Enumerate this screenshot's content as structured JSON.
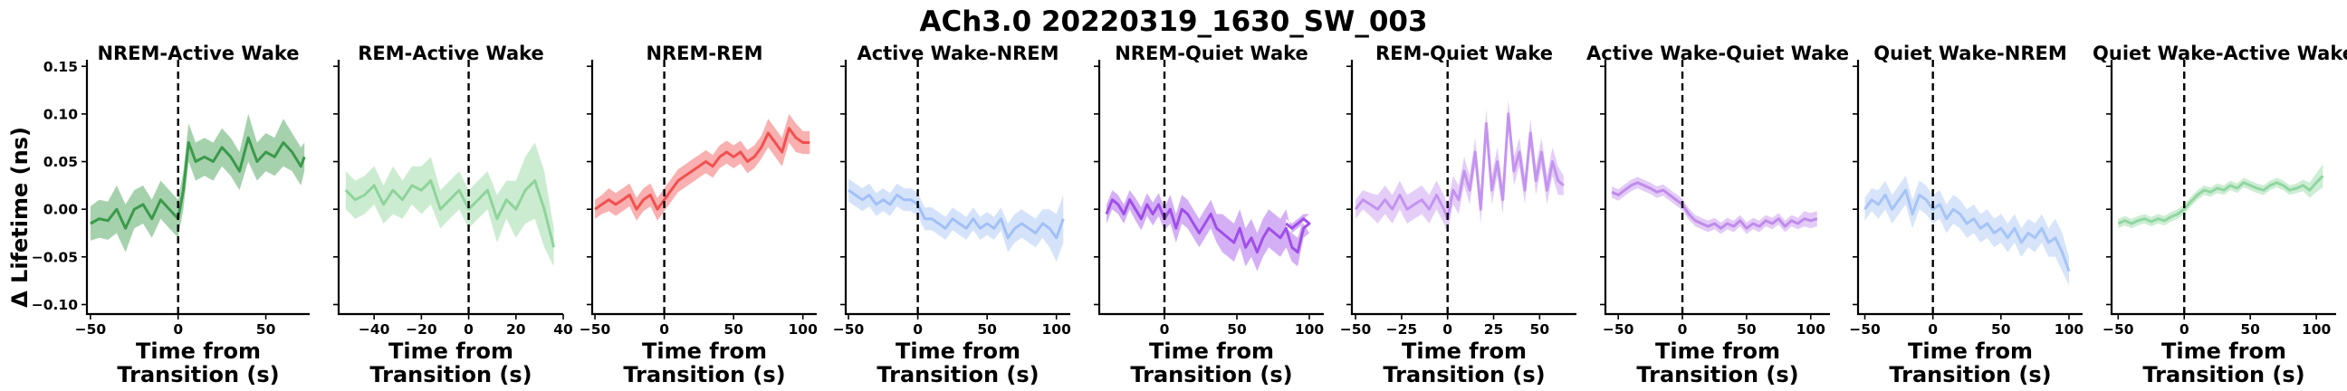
{
  "figure_title": "ACh3.0 20220319_1630_SW_003",
  "chart_data": {
    "type": "line",
    "ylabel": "Δ Lifetime (ns)",
    "xlabel": "Time from\nTransition (s)",
    "ylim": [
      -0.11,
      0.155
    ],
    "yticks": [
      -0.1,
      -0.05,
      0.0,
      0.05,
      0.1,
      0.15
    ],
    "ytick_labels": [
      "−0.10",
      "−0.05",
      "0.00",
      "0.05",
      "0.10",
      "0.15"
    ],
    "shared_y": true,
    "vertical_line": {
      "x": 0,
      "style": "dashed"
    },
    "panels": [
      {
        "title": "NREM-Active Wake",
        "color": "#3a9a4a",
        "xlim": [
          -52,
          75
        ],
        "xticks": [
          -50,
          0,
          50
        ],
        "xtick_labels": [
          "−50",
          "0",
          "50"
        ],
        "x": [
          -50,
          -45,
          -40,
          -35,
          -30,
          -25,
          -20,
          -15,
          -10,
          -5,
          0,
          3,
          6,
          10,
          15,
          20,
          25,
          30,
          35,
          40,
          45,
          50,
          55,
          60,
          65,
          70,
          72
        ],
        "y": [
          -0.015,
          -0.01,
          -0.012,
          0.0,
          -0.02,
          0.0,
          0.005,
          -0.01,
          0.01,
          0.0,
          -0.01,
          0.02,
          0.07,
          0.05,
          0.055,
          0.05,
          0.065,
          0.055,
          0.04,
          0.075,
          0.05,
          0.06,
          0.055,
          0.07,
          0.06,
          0.045,
          0.055
        ],
        "band": [
          0.018,
          0.02,
          0.02,
          0.025,
          0.025,
          0.02,
          0.02,
          0.02,
          0.02,
          0.02,
          0.02,
          0.02,
          0.02,
          0.02,
          0.02,
          0.02,
          0.02,
          0.02,
          0.02,
          0.025,
          0.02,
          0.02,
          0.02,
          0.025,
          0.02,
          0.02,
          0.015
        ]
      },
      {
        "title": "REM-Active Wake",
        "color": "#8ed49a",
        "xlim": [
          -55,
          40
        ],
        "xticks": [
          -40,
          -20,
          0,
          20,
          40
        ],
        "xtick_labels": [
          "−40",
          "−20",
          "0",
          "20",
          "40"
        ],
        "x": [
          -52,
          -48,
          -44,
          -40,
          -36,
          -32,
          -28,
          -24,
          -20,
          -16,
          -12,
          -8,
          -4,
          0,
          4,
          8,
          12,
          16,
          20,
          24,
          28,
          32,
          36
        ],
        "y": [
          0.02,
          0.01,
          0.015,
          0.025,
          0.005,
          0.02,
          0.01,
          0.025,
          0.02,
          0.03,
          0.0,
          0.01,
          0.02,
          0.0,
          0.01,
          0.02,
          -0.01,
          0.01,
          0.0,
          0.02,
          0.03,
          0.0,
          -0.04
        ],
        "band": [
          0.02,
          0.02,
          0.02,
          0.02,
          0.02,
          0.025,
          0.02,
          0.02,
          0.025,
          0.025,
          0.02,
          0.02,
          0.02,
          0.02,
          0.02,
          0.02,
          0.025,
          0.02,
          0.03,
          0.035,
          0.04,
          0.04,
          0.02
        ]
      },
      {
        "title": "NREM-REM",
        "color": "#f25050",
        "xlim": [
          -52,
          110
        ],
        "xticks": [
          -50,
          0,
          50,
          100
        ],
        "xtick_labels": [
          "−50",
          "0",
          "50",
          "100"
        ],
        "x": [
          -50,
          -45,
          -40,
          -35,
          -30,
          -25,
          -20,
          -15,
          -10,
          -5,
          0,
          5,
          10,
          15,
          20,
          25,
          30,
          35,
          40,
          45,
          50,
          55,
          60,
          65,
          70,
          75,
          80,
          85,
          90,
          95,
          100,
          105
        ],
        "y": [
          0.0,
          0.005,
          0.01,
          0.005,
          0.01,
          0.015,
          0.0,
          0.01,
          0.015,
          0.0,
          0.01,
          0.02,
          0.03,
          0.035,
          0.04,
          0.045,
          0.05,
          0.045,
          0.055,
          0.06,
          0.055,
          0.06,
          0.05,
          0.055,
          0.065,
          0.08,
          0.07,
          0.06,
          0.085,
          0.075,
          0.07,
          0.07
        ],
        "band": [
          0.01,
          0.01,
          0.012,
          0.012,
          0.012,
          0.012,
          0.012,
          0.012,
          0.012,
          0.012,
          0.012,
          0.012,
          0.012,
          0.012,
          0.012,
          0.012,
          0.012,
          0.012,
          0.012,
          0.012,
          0.012,
          0.012,
          0.012,
          0.012,
          0.012,
          0.015,
          0.015,
          0.015,
          0.015,
          0.015,
          0.012,
          0.012
        ]
      },
      {
        "title": "Active Wake-NREM",
        "color": "#a2c0f5",
        "xlim": [
          -52,
          110
        ],
        "xticks": [
          -50,
          0,
          50,
          100
        ],
        "xtick_labels": [
          "−50",
          "0",
          "50",
          "100"
        ],
        "x": [
          -50,
          -45,
          -40,
          -35,
          -30,
          -25,
          -20,
          -15,
          -10,
          -5,
          0,
          5,
          10,
          15,
          20,
          25,
          30,
          35,
          40,
          45,
          50,
          55,
          60,
          65,
          70,
          75,
          80,
          85,
          90,
          95,
          100,
          105
        ],
        "y": [
          0.02,
          0.015,
          0.01,
          0.015,
          0.005,
          0.01,
          0.005,
          0.015,
          0.01,
          0.01,
          0.005,
          -0.01,
          -0.01,
          -0.015,
          -0.02,
          -0.01,
          -0.015,
          -0.02,
          -0.01,
          -0.02,
          -0.015,
          -0.02,
          -0.01,
          -0.03,
          -0.02,
          -0.015,
          -0.02,
          -0.025,
          -0.015,
          -0.02,
          -0.03,
          -0.01
        ],
        "band": [
          0.012,
          0.012,
          0.012,
          0.012,
          0.012,
          0.012,
          0.012,
          0.012,
          0.012,
          0.012,
          0.012,
          0.012,
          0.012,
          0.012,
          0.012,
          0.012,
          0.012,
          0.012,
          0.012,
          0.012,
          0.012,
          0.012,
          0.012,
          0.015,
          0.015,
          0.015,
          0.015,
          0.015,
          0.015,
          0.02,
          0.025,
          0.025
        ]
      },
      {
        "title": "NREM-Quiet Wake",
        "color": "#a04ee8",
        "xlim": [
          -45,
          110
        ],
        "xticks": [
          0,
          50,
          100
        ],
        "xtick_labels": [
          "0",
          "50",
          "100"
        ],
        "x": [
          -40,
          -36,
          -32,
          -28,
          -24,
          -20,
          -16,
          -12,
          -8,
          -4,
          0,
          4,
          8,
          12,
          16,
          20,
          24,
          28,
          32,
          36,
          40,
          44,
          48,
          52,
          56,
          60,
          64,
          68,
          72,
          76,
          80,
          84,
          88,
          92,
          96,
          100,
          96,
          88,
          84
        ],
        "y": [
          -0.005,
          0.01,
          0.005,
          -0.005,
          0.01,
          0.0,
          -0.01,
          0.005,
          -0.005,
          0.005,
          -0.01,
          0.0,
          -0.02,
          0.0,
          -0.005,
          -0.015,
          -0.025,
          -0.015,
          -0.005,
          -0.02,
          -0.025,
          -0.03,
          -0.035,
          -0.02,
          -0.04,
          -0.03,
          -0.045,
          -0.03,
          -0.02,
          -0.025,
          -0.03,
          -0.02,
          -0.04,
          -0.045,
          -0.02,
          -0.015,
          -0.01,
          -0.02,
          -0.015
        ],
        "band": [
          0.01,
          0.01,
          0.01,
          0.01,
          0.01,
          0.012,
          0.012,
          0.012,
          0.012,
          0.012,
          0.012,
          0.015,
          0.015,
          0.015,
          0.015,
          0.015,
          0.015,
          0.015,
          0.015,
          0.015,
          0.02,
          0.02,
          0.02,
          0.02,
          0.02,
          0.02,
          0.02,
          0.02,
          0.02,
          0.02,
          0.02,
          0.02,
          0.015,
          0.015,
          0.01,
          0.01,
          0.005,
          0.005,
          0.005
        ]
      },
      {
        "title": "REM-Quiet Wake",
        "color": "#c493f0",
        "xlim": [
          -52,
          70
        ],
        "xticks": [
          -50,
          -25,
          0,
          25,
          50
        ],
        "xtick_labels": [
          "−50",
          "−25",
          "0",
          "25",
          "50"
        ],
        "x": [
          -50,
          -46,
          -42,
          -38,
          -34,
          -30,
          -26,
          -22,
          -18,
          -14,
          -10,
          -6,
          -2,
          0,
          3,
          6,
          9,
          12,
          15,
          18,
          21,
          24,
          27,
          30,
          33,
          36,
          39,
          42,
          45,
          48,
          51,
          54,
          57,
          60,
          63
        ],
        "y": [
          0.0,
          0.01,
          0.005,
          0.0,
          0.01,
          0.0,
          0.015,
          0.0,
          0.005,
          0.01,
          0.0,
          0.015,
          0.0,
          -0.01,
          0.02,
          0.01,
          0.04,
          0.02,
          0.06,
          0.0,
          0.09,
          0.02,
          0.05,
          0.01,
          0.1,
          0.04,
          0.06,
          0.02,
          0.08,
          0.03,
          0.06,
          0.02,
          0.05,
          0.03,
          0.025
        ],
        "band": [
          0.01,
          0.01,
          0.012,
          0.015,
          0.015,
          0.015,
          0.015,
          0.015,
          0.015,
          0.015,
          0.015,
          0.015,
          0.015,
          0.015,
          0.015,
          0.015,
          0.015,
          0.015,
          0.015,
          0.015,
          0.015,
          0.015,
          0.015,
          0.015,
          0.015,
          0.015,
          0.015,
          0.015,
          0.015,
          0.015,
          0.015,
          0.015,
          0.015,
          0.015,
          0.01
        ]
      },
      {
        "title": "Active Wake-Quiet Wake",
        "color": "#c08bec",
        "xlim": [
          -60,
          115
        ],
        "xticks": [
          -50,
          0,
          50,
          100
        ],
        "xtick_labels": [
          "−50",
          "0",
          "50",
          "100"
        ],
        "x": [
          -55,
          -50,
          -45,
          -40,
          -35,
          -30,
          -25,
          -20,
          -15,
          -10,
          -5,
          0,
          5,
          10,
          15,
          20,
          25,
          30,
          35,
          40,
          45,
          50,
          55,
          60,
          65,
          70,
          75,
          80,
          85,
          90,
          95,
          100,
          105
        ],
        "y": [
          0.018,
          0.015,
          0.02,
          0.025,
          0.028,
          0.025,
          0.022,
          0.018,
          0.02,
          0.015,
          0.01,
          0.005,
          -0.005,
          -0.012,
          -0.015,
          -0.018,
          -0.015,
          -0.02,
          -0.015,
          -0.018,
          -0.012,
          -0.02,
          -0.015,
          -0.018,
          -0.012,
          -0.015,
          -0.01,
          -0.018,
          -0.012,
          -0.015,
          -0.01,
          -0.012,
          -0.01
        ],
        "band": [
          0.006,
          0.006,
          0.006,
          0.006,
          0.006,
          0.006,
          0.006,
          0.006,
          0.006,
          0.006,
          0.006,
          0.006,
          0.006,
          0.006,
          0.006,
          0.006,
          0.006,
          0.006,
          0.006,
          0.006,
          0.006,
          0.006,
          0.006,
          0.006,
          0.006,
          0.006,
          0.006,
          0.006,
          0.006,
          0.006,
          0.008,
          0.008,
          0.008
        ]
      },
      {
        "title": "Quiet Wake-NREM",
        "color": "#a6c4f5",
        "xlim": [
          -55,
          110
        ],
        "xticks": [
          -50,
          0,
          50,
          100
        ],
        "xtick_labels": [
          "−50",
          "0",
          "50",
          "100"
        ],
        "x": [
          -50,
          -45,
          -40,
          -35,
          -30,
          -25,
          -20,
          -15,
          -10,
          -5,
          0,
          5,
          10,
          15,
          20,
          25,
          30,
          35,
          40,
          45,
          50,
          55,
          60,
          65,
          70,
          75,
          80,
          85,
          90,
          95,
          100
        ],
        "y": [
          0.0,
          0.01,
          0.005,
          0.015,
          0.0,
          0.01,
          0.02,
          -0.005,
          0.015,
          0.01,
          0.0,
          0.005,
          -0.01,
          0.0,
          -0.005,
          -0.015,
          -0.01,
          -0.02,
          -0.015,
          -0.025,
          -0.02,
          -0.03,
          -0.02,
          -0.035,
          -0.025,
          -0.03,
          -0.02,
          -0.035,
          -0.03,
          -0.045,
          -0.065
        ],
        "band": [
          0.012,
          0.012,
          0.015,
          0.015,
          0.015,
          0.015,
          0.015,
          0.015,
          0.015,
          0.015,
          0.015,
          0.015,
          0.015,
          0.015,
          0.015,
          0.015,
          0.015,
          0.015,
          0.015,
          0.015,
          0.015,
          0.015,
          0.015,
          0.015,
          0.015,
          0.015,
          0.015,
          0.015,
          0.02,
          0.02,
          0.015
        ]
      },
      {
        "title": "Quiet Wake-Active Wake",
        "color": "#90d6a0",
        "xlim": [
          -55,
          115
        ],
        "xticks": [
          -50,
          0,
          50,
          100
        ],
        "xtick_labels": [
          "−50",
          "0",
          "50",
          "100"
        ],
        "x": [
          -50,
          -45,
          -40,
          -35,
          -30,
          -25,
          -20,
          -15,
          -10,
          -5,
          0,
          5,
          10,
          15,
          20,
          25,
          30,
          35,
          40,
          45,
          50,
          55,
          60,
          65,
          70,
          75,
          80,
          85,
          90,
          95,
          100,
          105
        ],
        "y": [
          -0.015,
          -0.012,
          -0.015,
          -0.012,
          -0.01,
          -0.013,
          -0.01,
          -0.012,
          -0.008,
          -0.005,
          0.0,
          0.008,
          0.015,
          0.02,
          0.018,
          0.022,
          0.02,
          0.025,
          0.022,
          0.028,
          0.025,
          0.022,
          0.02,
          0.025,
          0.028,
          0.025,
          0.02,
          0.022,
          0.025,
          0.02,
          0.028,
          0.035
        ],
        "band": [
          0.005,
          0.005,
          0.005,
          0.005,
          0.005,
          0.005,
          0.005,
          0.005,
          0.005,
          0.005,
          0.005,
          0.005,
          0.005,
          0.005,
          0.005,
          0.005,
          0.005,
          0.005,
          0.005,
          0.005,
          0.005,
          0.005,
          0.005,
          0.005,
          0.005,
          0.005,
          0.005,
          0.005,
          0.006,
          0.008,
          0.01,
          0.012
        ]
      }
    ]
  }
}
